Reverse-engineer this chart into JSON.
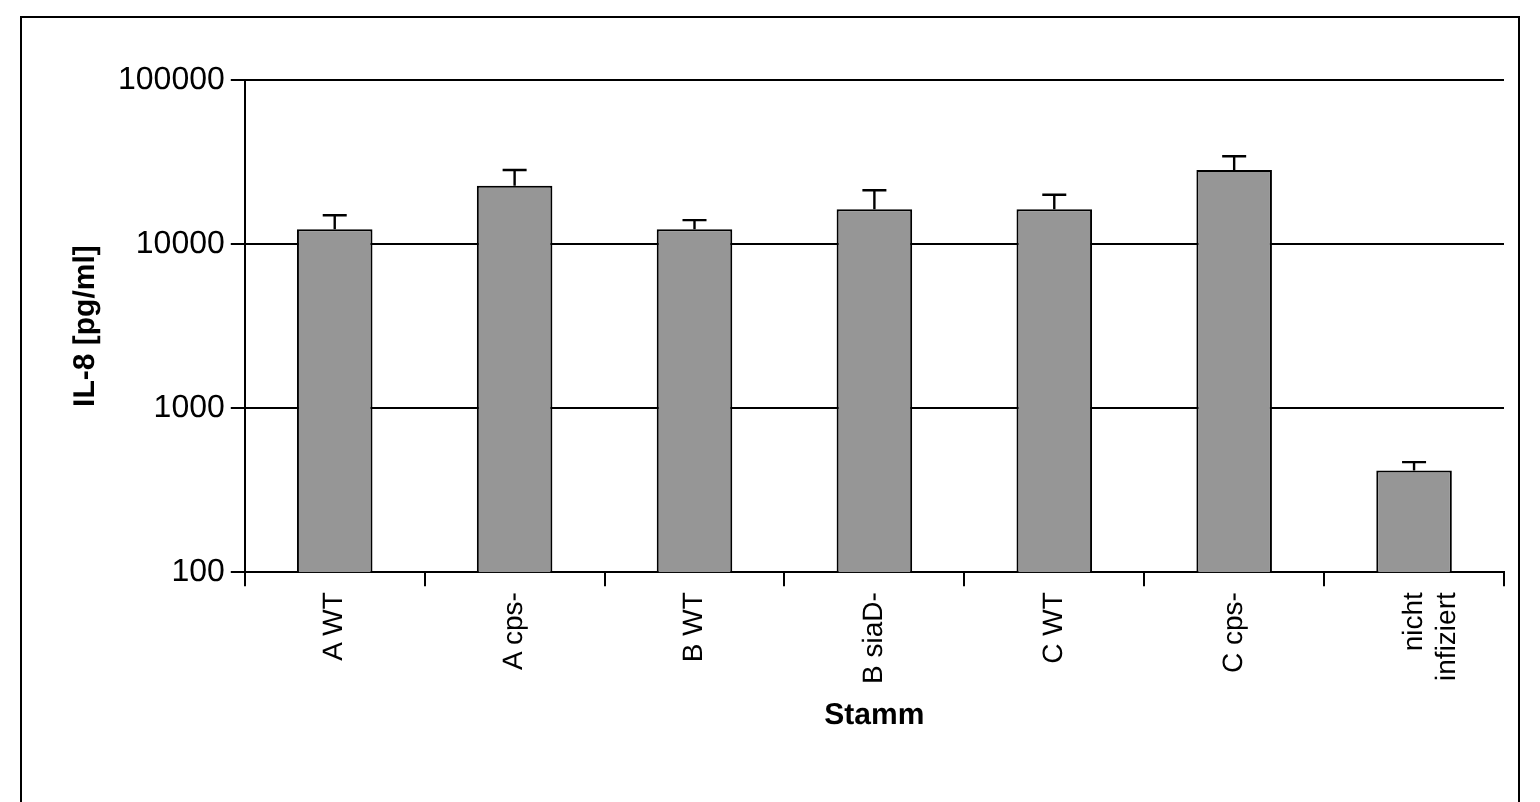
{
  "chart_data": {
    "type": "bar",
    "xlabel": "Stamm",
    "ylabel": "IL-8 [pg/ml]",
    "categories": [
      "A WT",
      "A cps-",
      "B WT",
      "B siaD-",
      "C WT",
      "C cps-",
      "nicht infiziert"
    ],
    "series": [
      {
        "color": "#969696",
        "values": [
          12300,
          22700,
          12300,
          16300,
          16300,
          28300,
          417
        ],
        "errors": [
          [
            12300,
            15000
          ],
          [
            22700,
            28300
          ],
          [
            12300,
            14000
          ],
          [
            16300,
            21300
          ],
          [
            16300,
            20000
          ],
          [
            28300,
            34300
          ],
          [
            417,
            469
          ]
        ]
      }
    ],
    "log": "y",
    "ylim": [
      100,
      100000
    ],
    "yticks": [
      100,
      1000,
      10000,
      100000
    ],
    "grid": "y",
    "legend": false
  }
}
